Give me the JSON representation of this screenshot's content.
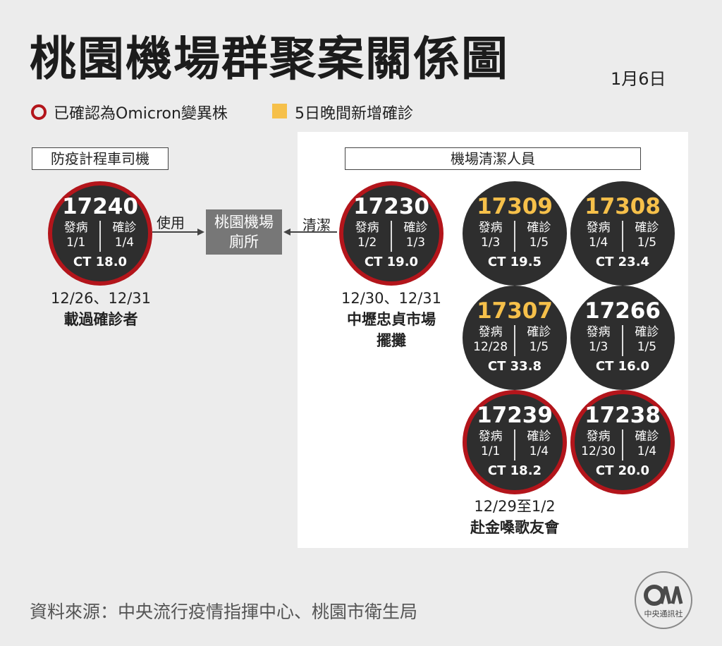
{
  "title": "桃園機場群聚案關係圖",
  "date": "1月6日",
  "legend": {
    "omicron_label": "已確認為Omicron變異株",
    "new_label": "5日晚間新增確診",
    "omicron_color": "#b3151b",
    "new_color": "#f6c04a"
  },
  "groups": {
    "driver_label": "防疫計程車司機",
    "cleaner_label": "機場清潔人員"
  },
  "location": {
    "line1": "桃園機場",
    "line2": "廁所"
  },
  "arrows": {
    "left_label": "使用",
    "right_label": "清潔"
  },
  "col_headers": {
    "onset": "發病",
    "confirm": "確診"
  },
  "cases": [
    {
      "id": "17240",
      "onset": "1/1",
      "confirm": "1/4",
      "ct": "CT 18.0",
      "omicron": true,
      "new": false
    },
    {
      "id": "17230",
      "onset": "1/2",
      "confirm": "1/3",
      "ct": "CT 19.0",
      "omicron": true,
      "new": false
    },
    {
      "id": "17309",
      "onset": "1/3",
      "confirm": "1/5",
      "ct": "CT 19.5",
      "omicron": false,
      "new": true
    },
    {
      "id": "17308",
      "onset": "1/4",
      "confirm": "1/5",
      "ct": "CT 23.4",
      "omicron": false,
      "new": true
    },
    {
      "id": "17307",
      "onset": "12/28",
      "confirm": "1/5",
      "ct": "CT 33.8",
      "omicron": false,
      "new": true
    },
    {
      "id": "17266",
      "onset": "1/3",
      "confirm": "1/5",
      "ct": "CT 16.0",
      "omicron": false,
      "new": false
    },
    {
      "id": "17239",
      "onset": "1/1",
      "confirm": "1/4",
      "ct": "CT 18.2",
      "omicron": true,
      "new": false
    },
    {
      "id": "17238",
      "onset": "12/30",
      "confirm": "1/4",
      "ct": "CT 20.0",
      "omicron": true,
      "new": false
    }
  ],
  "notes": {
    "driver_dates": "12/26、12/31",
    "driver_desc": "載過確診者",
    "cleaner_dates": "12/30、12/31",
    "cleaner_desc1": "中壢忠貞市場",
    "cleaner_desc2": "擺攤",
    "concert_dates": "12/29至1/2",
    "concert_desc": "赴金嗓歌友會"
  },
  "source": "資料來源：中央流行疫情指揮中心、桃園市衛生局",
  "logo": {
    "text": "中央通訊社"
  }
}
